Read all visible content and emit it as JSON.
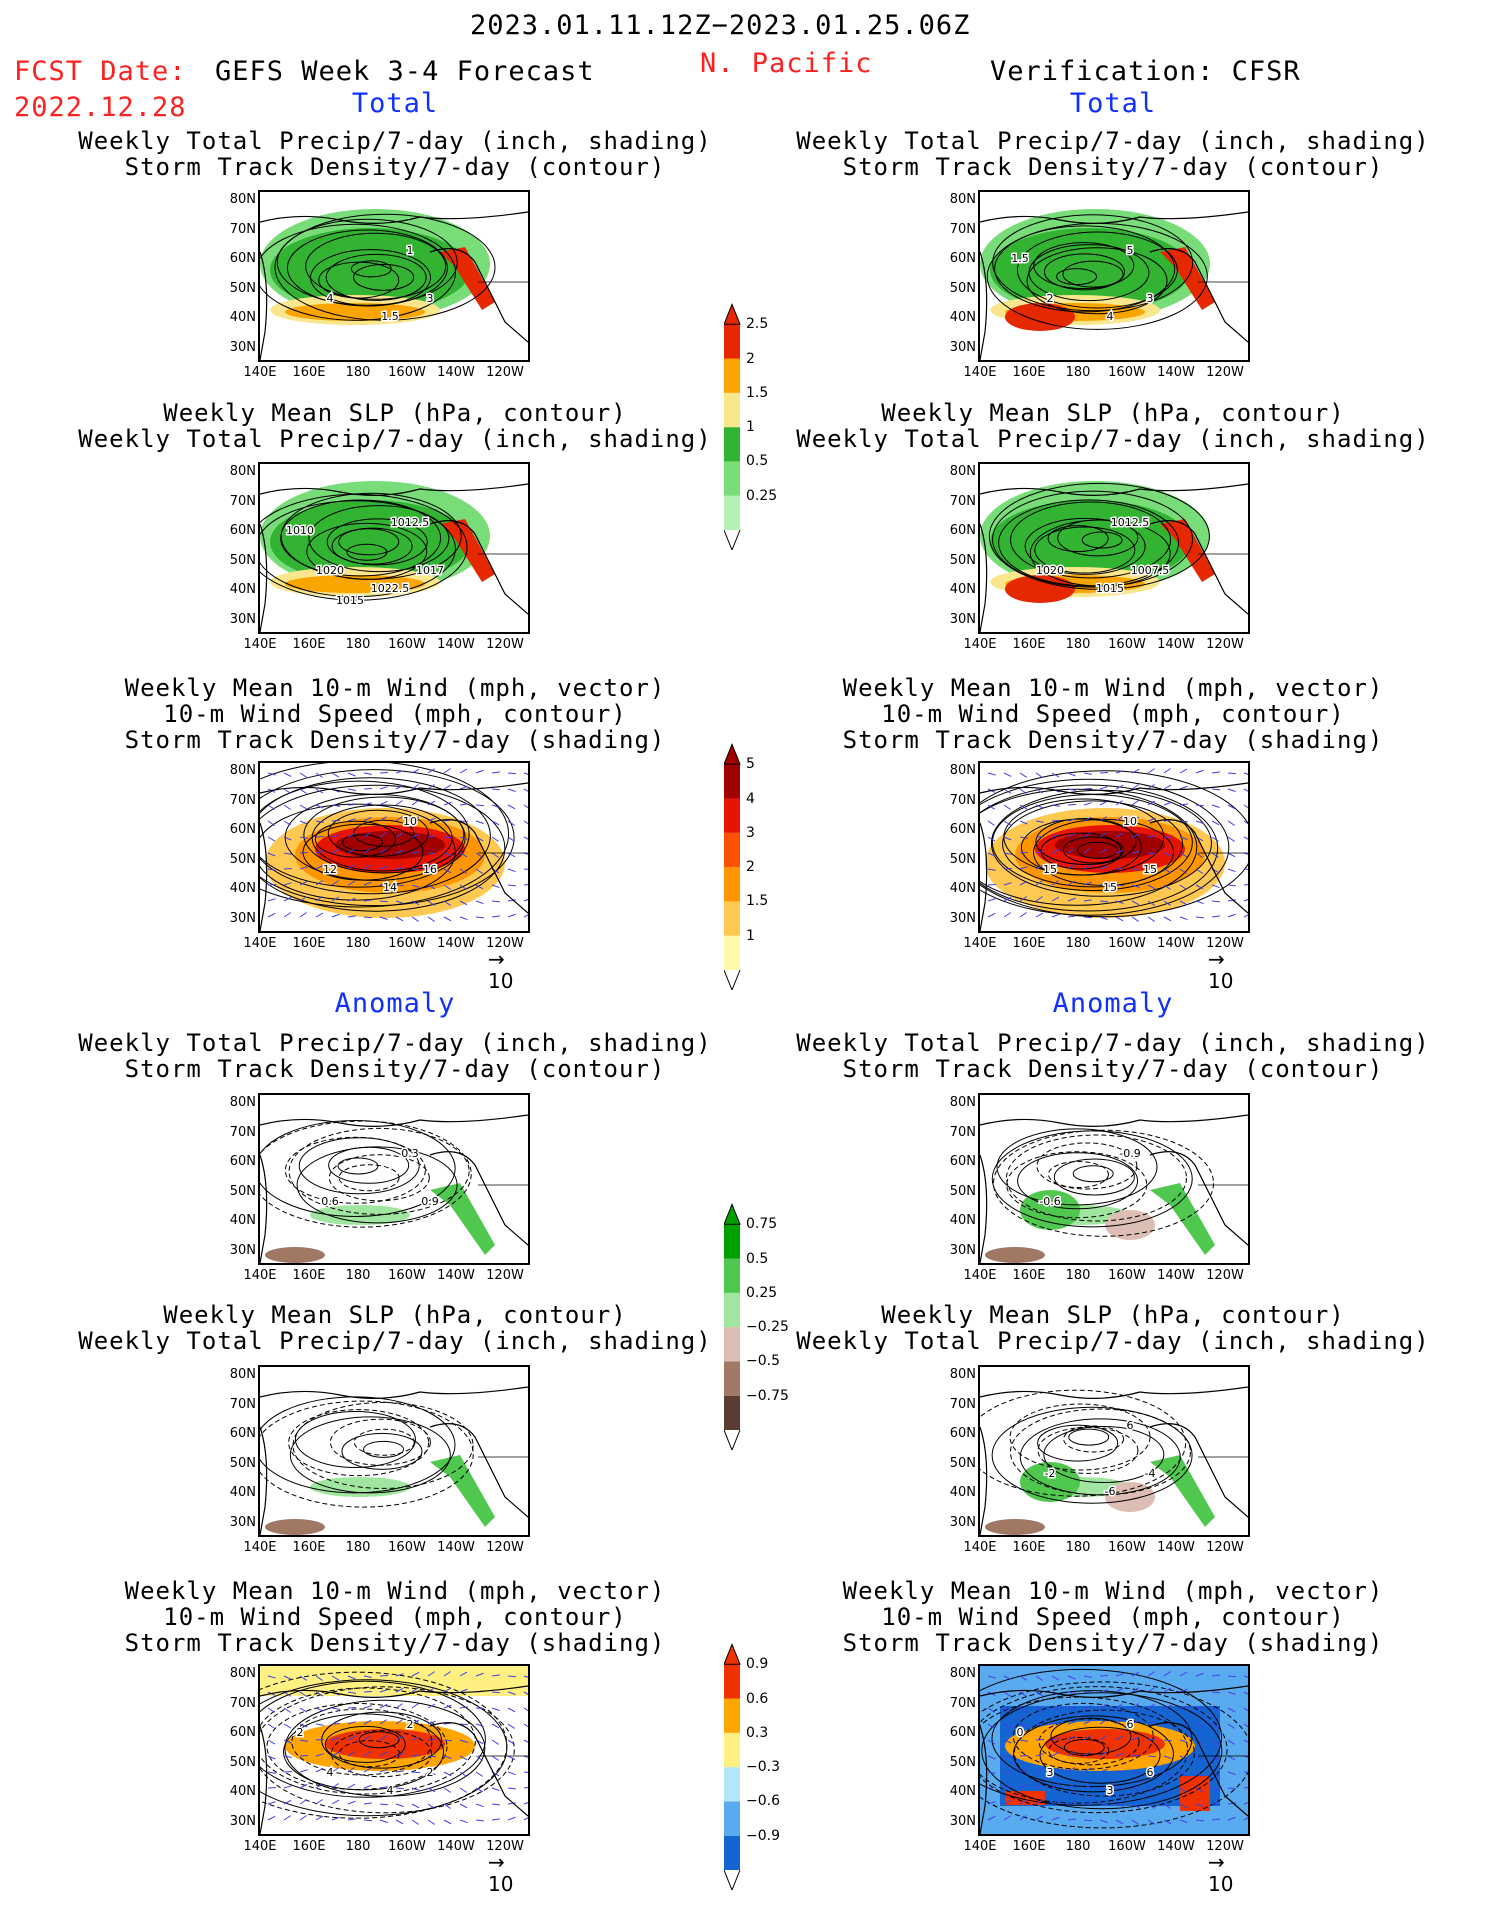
{
  "header": {
    "date_range": "2023.01.11.12Z−2023.01.25.06Z",
    "fcst_label": "FCST Date:",
    "fcst_date": "2022.12.28",
    "forecast_title": "GEFS Week 3-4 Forecast",
    "region": "N. Pacific",
    "verification": "Verification: CFSR"
  },
  "sections": {
    "total": "Total",
    "anomaly": "Anomaly"
  },
  "panel_titles": {
    "precip_storm": [
      "Weekly Total Precip/7-day (inch, shading)",
      "Storm Track Density/7-day (contour)"
    ],
    "slp_precip": [
      "Weekly Mean SLP (hPa, contour)",
      "Weekly Total Precip/7-day (inch, shading)"
    ],
    "wind_storm": [
      "Weekly Mean 10-m Wind (mph, vector)",
      "10-m Wind Speed (mph, contour)",
      "Storm Track Density/7-day (shading)"
    ]
  },
  "axes": {
    "lat_ticks": [
      "80N",
      "70N",
      "60N",
      "50N",
      "40N",
      "30N"
    ],
    "lon_ticks": [
      "140E",
      "160E",
      "180",
      "160W",
      "140W",
      "120W"
    ]
  },
  "vector_ref": "10",
  "contour_labels": {
    "fc_total_precip": [
      "1",
      "4",
      "3",
      "1.5"
    ],
    "ob_total_precip": [
      "5",
      "2",
      "3",
      "4",
      "1.5"
    ],
    "fc_total_slp": [
      "1012.5",
      "1020",
      "1017",
      "1022.5",
      "1010",
      "1015"
    ],
    "ob_total_slp": [
      "1012.5",
      "1020",
      "1007.5",
      "1015"
    ],
    "fc_total_wind": [
      "10",
      "12",
      "16",
      "14"
    ],
    "ob_total_wind": [
      "10",
      "15",
      "15",
      "15"
    ],
    "fc_anom_precip": [
      "0.3",
      "0.6",
      "0.9"
    ],
    "ob_anom_precip": [
      "-0.9",
      "-0.6"
    ],
    "ob_anom_slp": [
      "6",
      "-2",
      "-4",
      "-6"
    ],
    "fc_anom_wind": [
      "2",
      "4",
      "2",
      "4",
      "2"
    ],
    "ob_anom_wind": [
      "6",
      "3",
      "6",
      "3",
      "0"
    ]
  },
  "colors": {
    "precip_total": [
      "#b4f0b4",
      "#78dc78",
      "#32b432",
      "#fae68c",
      "#faa500",
      "#e62800"
    ],
    "storm_total": [
      "#fffaaa",
      "#ffc850",
      "#ff9600",
      "#ff5000",
      "#e61400",
      "#a00000"
    ],
    "precip_anom": [
      "#5a3c32",
      "#a07864",
      "#dcbeb4",
      "#a0e6a0",
      "#50c850",
      "#00a000"
    ],
    "storm_anom": [
      "#1464d2",
      "#5aaaf0",
      "#b4e6fa",
      "#fff082",
      "#ffa500",
      "#f03200"
    ]
  },
  "chart_data": [
    {
      "type": "heatmap",
      "name": "Weekly Total Precip total colorbar",
      "unit": "inch",
      "levels": [
        0.25,
        0.5,
        1,
        1.5,
        2,
        2.5
      ],
      "level_labels": [
        "0.25",
        "0.5",
        "1",
        "1.5",
        "2",
        "2.5"
      ]
    },
    {
      "type": "heatmap",
      "name": "Storm Track Density total colorbar",
      "levels": [
        1,
        1.5,
        2,
        3,
        4,
        5
      ],
      "level_labels": [
        "1",
        "1.5",
        "2",
        "3",
        "4",
        "5"
      ]
    },
    {
      "type": "heatmap",
      "name": "Weekly Total Precip anomaly colorbar",
      "unit": "inch",
      "levels": [
        -0.75,
        -0.5,
        -0.25,
        0.25,
        0.5,
        0.75
      ],
      "level_labels": [
        "−0.75",
        "−0.5",
        "−0.25",
        "0.25",
        "0.5",
        "0.75"
      ]
    },
    {
      "type": "heatmap",
      "name": "Storm Track Density anomaly colorbar",
      "levels": [
        -0.9,
        -0.6,
        -0.3,
        0.3,
        0.6,
        0.9
      ],
      "level_labels": [
        "−0.9",
        "−0.6",
        "−0.3",
        "0.3",
        "0.6",
        "0.9"
      ]
    }
  ]
}
